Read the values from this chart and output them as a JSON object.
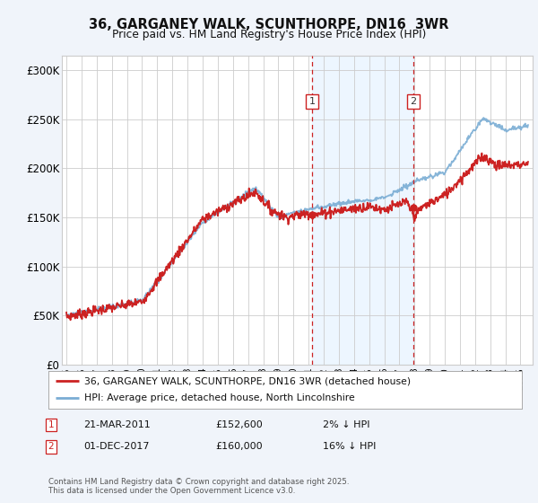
{
  "title": "36, GARGANEY WALK, SCUNTHORPE, DN16  3WR",
  "subtitle": "Price paid vs. HM Land Registry's House Price Index (HPI)",
  "ylabel_ticks": [
    "£0",
    "£50K",
    "£100K",
    "£150K",
    "£200K",
    "£250K",
    "£300K"
  ],
  "ytick_values": [
    0,
    50000,
    100000,
    150000,
    200000,
    250000,
    300000
  ],
  "ylim": [
    0,
    315000
  ],
  "xlim_start": 1994.7,
  "xlim_end": 2025.8,
  "hpi_color": "#7aadd4",
  "price_color": "#cc2222",
  "shade_color": "#ddeeff",
  "shade_alpha": 0.5,
  "marker1_x": 2011.22,
  "marker2_x": 2017.92,
  "marker1_y": 152600,
  "marker2_y": 160000,
  "annotation1": {
    "label": "1",
    "date": "21-MAR-2011",
    "price": "£152,600",
    "hpi_diff": "2% ↓ HPI"
  },
  "annotation2": {
    "label": "2",
    "date": "01-DEC-2017",
    "price": "£160,000",
    "hpi_diff": "16% ↓ HPI"
  },
  "legend_price_label": "36, GARGANEY WALK, SCUNTHORPE, DN16 3WR (detached house)",
  "legend_hpi_label": "HPI: Average price, detached house, North Lincolnshire",
  "footer": "Contains HM Land Registry data © Crown copyright and database right 2025.\nThis data is licensed under the Open Government Licence v3.0.",
  "background_color": "#f0f4fa",
  "plot_bg_color": "#ffffff",
  "grid_color": "#cccccc"
}
